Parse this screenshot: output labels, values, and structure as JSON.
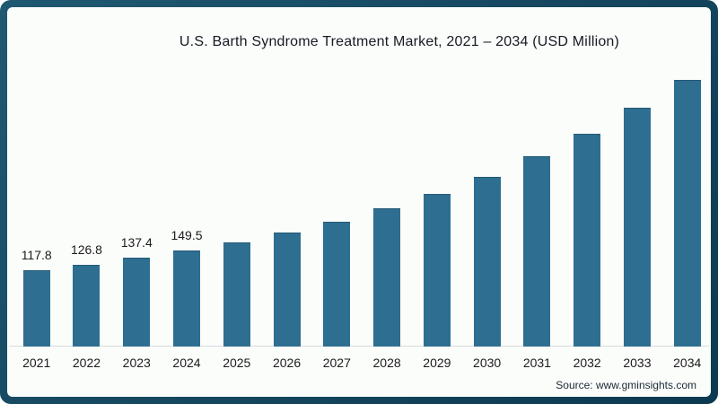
{
  "chart_data": {
    "type": "bar",
    "title": "U.S. Barth Syndrome Treatment Market, 2021 – 2034 (USD Million)",
    "categories": [
      "2021",
      "2022",
      "2023",
      "2024",
      "2025",
      "2026",
      "2027",
      "2028",
      "2029",
      "2030",
      "2031",
      "2032",
      "2033",
      "2034"
    ],
    "values": [
      117.8,
      126.8,
      137.4,
      149.5,
      161.5,
      177.4,
      193.7,
      215.6,
      237.2,
      263.8,
      296.1,
      331.6,
      372.2,
      416.1
    ],
    "data_labels": [
      "117.8",
      "126.8",
      "137.4",
      "149.5",
      "",
      "",
      "",
      "",
      "",
      "",
      "",
      "",
      "",
      ""
    ],
    "xlabel": "",
    "ylabel": "",
    "ylim": [
      0,
      430
    ],
    "grid": false,
    "legend": "none",
    "bar_color": "#2E6E90"
  },
  "frame": {
    "border_color": "#164961",
    "background": "#FBFDFB"
  },
  "source": {
    "text": "Source: www.gminsights.com"
  }
}
